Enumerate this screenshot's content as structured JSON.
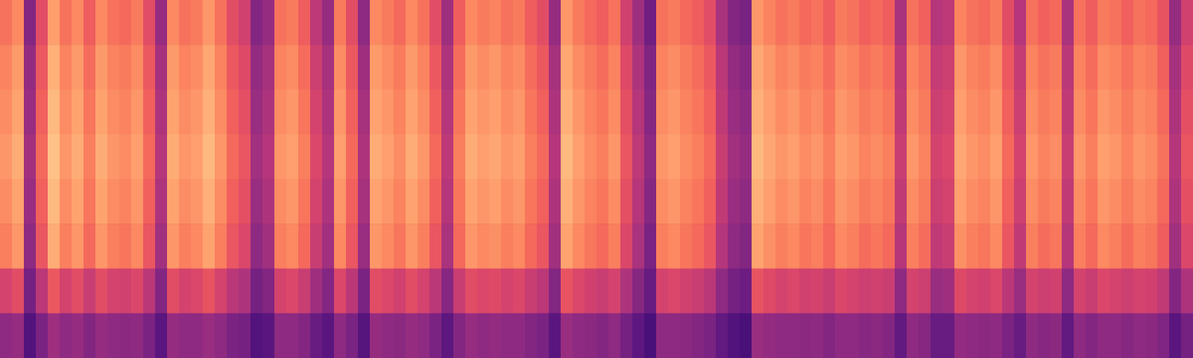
{
  "chart_data": {
    "type": "heatmap",
    "tick_labels": false,
    "zlim": [
      10,
      85
    ],
    "cells": [
      [
        64,
        69,
        29,
        54,
        74,
        64,
        69,
        59,
        69,
        64,
        62,
        66,
        54,
        34,
        69,
        64,
        66,
        72,
        64,
        54,
        49,
        29,
        34,
        64,
        66,
        59,
        44,
        34,
        66,
        54,
        32,
        69,
        66,
        62,
        69,
        64,
        54,
        36,
        59,
        69,
        66,
        68,
        64,
        66,
        59,
        54,
        34,
        72,
        66,
        62,
        59,
        64,
        49,
        36,
        24,
        64,
        66,
        62,
        59,
        54,
        39,
        29,
        26,
        72,
        68,
        64,
        66,
        62,
        64,
        59,
        66,
        64,
        60,
        62,
        59,
        39,
        64,
        60,
        42,
        44,
        68,
        64,
        62,
        66,
        54,
        42,
        64,
        60,
        62,
        39,
        64,
        59,
        66,
        64,
        60,
        64,
        62,
        56,
        34,
        49
      ],
      [
        68,
        73,
        33,
        58,
        78,
        68,
        73,
        63,
        73,
        68,
        66,
        70,
        58,
        38,
        73,
        68,
        70,
        76,
        68,
        58,
        53,
        33,
        38,
        68,
        70,
        63,
        48,
        38,
        70,
        58,
        36,
        73,
        70,
        66,
        73,
        68,
        58,
        40,
        63,
        73,
        70,
        72,
        68,
        70,
        63,
        58,
        38,
        76,
        70,
        66,
        63,
        68,
        53,
        40,
        28,
        68,
        70,
        66,
        63,
        58,
        43,
        33,
        30,
        76,
        72,
        68,
        70,
        66,
        68,
        63,
        70,
        68,
        64,
        66,
        63,
        43,
        68,
        64,
        46,
        48,
        72,
        68,
        66,
        70,
        58,
        46,
        68,
        64,
        66,
        43,
        68,
        63,
        70,
        68,
        64,
        68,
        66,
        60,
        38,
        53
      ],
      [
        70,
        75,
        35,
        60,
        80,
        70,
        75,
        65,
        75,
        70,
        68,
        72,
        60,
        40,
        75,
        70,
        72,
        78,
        70,
        60,
        55,
        35,
        40,
        70,
        72,
        65,
        50,
        40,
        72,
        60,
        38,
        75,
        72,
        68,
        75,
        70,
        60,
        42,
        65,
        75,
        72,
        74,
        70,
        72,
        65,
        60,
        40,
        78,
        72,
        68,
        65,
        70,
        55,
        42,
        30,
        70,
        72,
        68,
        65,
        60,
        45,
        35,
        32,
        78,
        74,
        70,
        72,
        68,
        70,
        65,
        72,
        70,
        66,
        68,
        65,
        45,
        70,
        66,
        48,
        50,
        74,
        70,
        68,
        72,
        60,
        48,
        70,
        66,
        68,
        45,
        70,
        65,
        72,
        70,
        66,
        70,
        68,
        62,
        40,
        55
      ],
      [
        72,
        77,
        37,
        62,
        82,
        72,
        77,
        67,
        77,
        72,
        70,
        74,
        62,
        42,
        77,
        72,
        74,
        80,
        72,
        62,
        57,
        37,
        42,
        72,
        74,
        67,
        52,
        42,
        74,
        62,
        40,
        77,
        74,
        70,
        77,
        72,
        62,
        44,
        67,
        77,
        74,
        76,
        72,
        74,
        67,
        62,
        42,
        80,
        74,
        70,
        67,
        72,
        57,
        44,
        32,
        72,
        74,
        70,
        67,
        62,
        47,
        37,
        34,
        80,
        76,
        72,
        74,
        70,
        72,
        67,
        74,
        72,
        68,
        70,
        67,
        47,
        72,
        68,
        50,
        52,
        76,
        72,
        70,
        74,
        62,
        50,
        72,
        68,
        70,
        47,
        72,
        67,
        74,
        72,
        68,
        72,
        70,
        64,
        42,
        57
      ],
      [
        70,
        75,
        35,
        60,
        80,
        70,
        75,
        65,
        75,
        70,
        68,
        72,
        60,
        40,
        75,
        70,
        72,
        78,
        70,
        60,
        55,
        35,
        40,
        70,
        72,
        65,
        50,
        40,
        72,
        60,
        38,
        75,
        72,
        68,
        75,
        70,
        60,
        42,
        65,
        75,
        72,
        74,
        70,
        72,
        65,
        60,
        40,
        78,
        72,
        68,
        65,
        70,
        55,
        42,
        30,
        70,
        72,
        68,
        65,
        60,
        45,
        35,
        32,
        78,
        74,
        70,
        72,
        68,
        70,
        65,
        72,
        70,
        66,
        68,
        65,
        45,
        70,
        66,
        48,
        50,
        74,
        70,
        68,
        72,
        60,
        48,
        70,
        66,
        68,
        45,
        70,
        65,
        72,
        70,
        66,
        70,
        68,
        62,
        40,
        55
      ],
      [
        67,
        72,
        32,
        57,
        77,
        67,
        72,
        62,
        72,
        67,
        65,
        69,
        57,
        37,
        72,
        67,
        69,
        75,
        67,
        57,
        52,
        32,
        37,
        67,
        69,
        62,
        47,
        37,
        69,
        57,
        35,
        72,
        69,
        65,
        72,
        67,
        57,
        39,
        62,
        72,
        69,
        71,
        67,
        69,
        62,
        57,
        37,
        75,
        69,
        65,
        62,
        67,
        52,
        39,
        27,
        67,
        69,
        65,
        62,
        57,
        42,
        32,
        29,
        75,
        71,
        67,
        69,
        65,
        67,
        62,
        69,
        67,
        63,
        65,
        62,
        42,
        67,
        63,
        45,
        47,
        71,
        67,
        65,
        69,
        57,
        45,
        67,
        63,
        65,
        42,
        67,
        62,
        69,
        67,
        63,
        67,
        65,
        59,
        37,
        52
      ],
      [
        50,
        54,
        25,
        43,
        58,
        50,
        54,
        47,
        54,
        50,
        49,
        52,
        43,
        29,
        54,
        50,
        52,
        56,
        50,
        43,
        40,
        25,
        29,
        50,
        52,
        47,
        36,
        29,
        52,
        43,
        27,
        54,
        52,
        49,
        54,
        50,
        43,
        30,
        47,
        54,
        52,
        53,
        50,
        52,
        47,
        43,
        29,
        56,
        52,
        49,
        47,
        50,
        40,
        30,
        22,
        50,
        52,
        49,
        47,
        43,
        32,
        25,
        23,
        56,
        53,
        50,
        52,
        49,
        50,
        47,
        52,
        50,
        48,
        49,
        47,
        32,
        50,
        48,
        35,
        36,
        53,
        50,
        49,
        52,
        43,
        35,
        50,
        48,
        49,
        32,
        50,
        47,
        52,
        50,
        48,
        50,
        49,
        45,
        29,
        40
      ],
      [
        32,
        34,
        16,
        27,
        36,
        32,
        34,
        29,
        34,
        32,
        31,
        32,
        27,
        18,
        34,
        32,
        32,
        35,
        32,
        27,
        25,
        16,
        18,
        32,
        32,
        29,
        22,
        18,
        32,
        27,
        17,
        34,
        32,
        31,
        34,
        32,
        27,
        19,
        29,
        34,
        32,
        33,
        32,
        32,
        29,
        27,
        18,
        35,
        32,
        31,
        29,
        32,
        25,
        19,
        14,
        32,
        32,
        31,
        29,
        27,
        20,
        16,
        14,
        35,
        33,
        32,
        32,
        31,
        32,
        29,
        32,
        32,
        30,
        31,
        29,
        20,
        32,
        30,
        22,
        22,
        33,
        32,
        31,
        32,
        27,
        22,
        32,
        30,
        31,
        20,
        32,
        29,
        32,
        32,
        30,
        32,
        31,
        28,
        18,
        25
      ]
    ]
  }
}
